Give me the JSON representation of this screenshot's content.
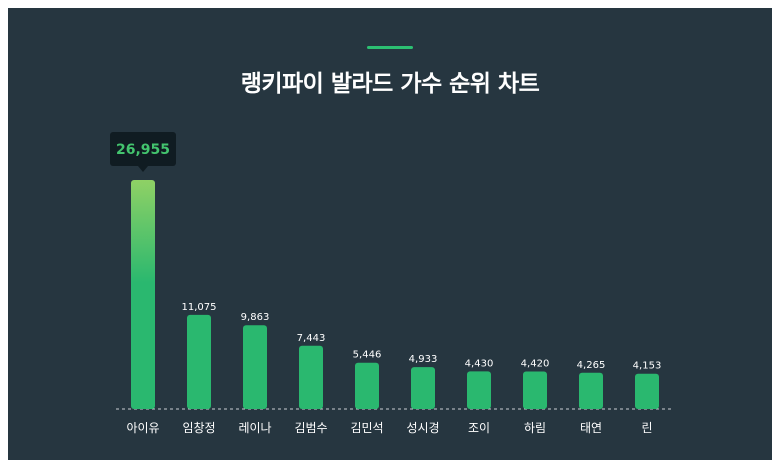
{
  "title": "랭키파이 발라드 가수 순위 차트",
  "colors": {
    "background": "#263640",
    "bar": "#2ab86f",
    "bar_top_highlight": "#8fd165",
    "accent": "#2cc072",
    "tooltip_bg": "#101c22",
    "tooltip_text": "#43c46e",
    "text": "#ffffff",
    "baseline": "#c9cfd3"
  },
  "chart_data": {
    "type": "bar",
    "title": "랭키파이 발라드 가수 순위 차트",
    "categories": [
      "아이유",
      "임창정",
      "레이나",
      "김범수",
      "김민석",
      "성시경",
      "조이",
      "하림",
      "태연",
      "린"
    ],
    "values": [
      26955,
      11075,
      9863,
      7443,
      5446,
      4933,
      4430,
      4420,
      4265,
      4153
    ],
    "value_labels": [
      "26,955",
      "11,075",
      "9,863",
      "7,443",
      "5,446",
      "4,933",
      "4,430",
      "4,420",
      "4,265",
      "4,153"
    ],
    "highlight_index": 0,
    "xlabel": "",
    "ylabel": "",
    "ylim": [
      0,
      26955
    ],
    "grid": false,
    "legend": "none"
  }
}
